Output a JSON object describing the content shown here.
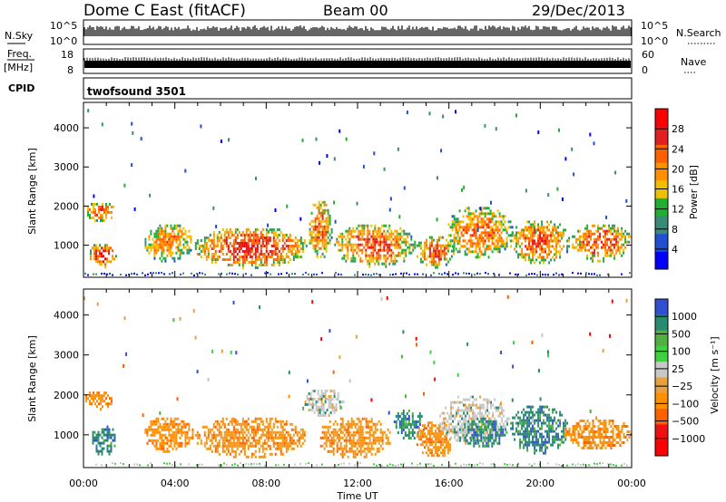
{
  "header": {
    "title": "Dome C East (fitACF)",
    "beam": "Beam 00",
    "date": "29/Dec/2013"
  },
  "panels": {
    "nsky_label": "N.Sky",
    "nsky_ticks": [
      "10^5",
      "10^0"
    ],
    "nsearch_label": "N.Search",
    "freq_label_1": "Freq.",
    "freq_label_2": "[MHz]",
    "freq_ticks": [
      "18",
      "8"
    ],
    "nave_ticks": [
      "60",
      "0"
    ],
    "nave_label": "Nave",
    "cpid_label": "CPID",
    "cpid_value": "twofsound 3501"
  },
  "colors": {
    "power_scale": [
      "#0000ff",
      "#2050d0",
      "#3a8a78",
      "#20b030",
      "#f0c000",
      "#ff9000",
      "#ff6000",
      "#e02020",
      "#ff0000"
    ],
    "velocity_scale": [
      "#3050d0",
      "#2a8a70",
      "#50b040",
      "#40d040",
      "#c8c8c8",
      "#e8a040",
      "#ff9000",
      "#ff6000",
      "#f01010",
      "#ff0000"
    ]
  },
  "chart_data": [
    {
      "type": "heatmap",
      "name": "Power",
      "xlabel": "Time UT",
      "ylabel": "Slant Range [km]",
      "x_ticks": [
        "00:00",
        "04:00",
        "08:00",
        "12:00",
        "16:00",
        "20:00",
        "00:00"
      ],
      "xlim_hours": [
        0,
        24
      ],
      "y_ticks": [
        1000,
        2000,
        3000,
        4000
      ],
      "ylim": [
        180,
        4650
      ],
      "colorbar_label": "Power [dB]",
      "colorbar_ticks": [
        4,
        8,
        12,
        16,
        20,
        24,
        28
      ],
      "colorbar_range": [
        0,
        32
      ],
      "echo_regions": [
        {
          "t": [
            0.0,
            1.4
          ],
          "r": [
            1650,
            2150
          ],
          "level": 0.55
        },
        {
          "t": [
            0.2,
            1.4
          ],
          "r": [
            450,
            1100
          ],
          "level": 0.7
        },
        {
          "t": [
            2.6,
            4.8
          ],
          "r": [
            600,
            1600
          ],
          "level": 0.5
        },
        {
          "t": [
            4.8,
            9.8
          ],
          "r": [
            450,
            1500
          ],
          "level": 0.7
        },
        {
          "t": [
            9.8,
            10.9
          ],
          "r": [
            700,
            2200
          ],
          "level": 0.55
        },
        {
          "t": [
            10.9,
            14.5
          ],
          "r": [
            450,
            1600
          ],
          "level": 0.6
        },
        {
          "t": [
            14.5,
            16.2
          ],
          "r": [
            450,
            1300
          ],
          "level": 0.6
        },
        {
          "t": [
            15.8,
            18.8
          ],
          "r": [
            700,
            2050
          ],
          "level": 0.55
        },
        {
          "t": [
            18.6,
            21.3
          ],
          "r": [
            550,
            1700
          ],
          "level": 0.6
        },
        {
          "t": [
            21.3,
            24.0
          ],
          "r": [
            600,
            1600
          ],
          "level": 0.6
        }
      ]
    },
    {
      "type": "heatmap",
      "name": "Velocity",
      "xlabel": "Time UT",
      "ylabel": "Slant Range [km]",
      "x_ticks": [
        "00:00",
        "04:00",
        "08:00",
        "12:00",
        "16:00",
        "20:00",
        "00:00"
      ],
      "xlim_hours": [
        0,
        24
      ],
      "y_ticks": [
        1000,
        2000,
        3000,
        4000
      ],
      "ylim": [
        180,
        4650
      ],
      "colorbar_label": "Velocity [m s⁻¹]",
      "colorbar_ticks": [
        "1000",
        "500",
        "100",
        "25",
        "−25",
        "−100",
        "−500",
        "−1000"
      ],
      "echo_regions": [
        {
          "t": [
            0.0,
            1.3
          ],
          "r": [
            1650,
            2150
          ],
          "palette": "neg"
        },
        {
          "t": [
            0.3,
            1.4
          ],
          "r": [
            500,
            1300
          ],
          "palette": "pos"
        },
        {
          "t": [
            2.6,
            4.8
          ],
          "r": [
            600,
            1500
          ],
          "palette": "neg"
        },
        {
          "t": [
            4.8,
            9.8
          ],
          "r": [
            450,
            1500
          ],
          "palette": "neg"
        },
        {
          "t": [
            9.6,
            11.4
          ],
          "r": [
            1500,
            2200
          ],
          "palette": "gray"
        },
        {
          "t": [
            10.2,
            13.5
          ],
          "r": [
            450,
            1500
          ],
          "palette": "neg"
        },
        {
          "t": [
            13.5,
            14.9
          ],
          "r": [
            900,
            1700
          ],
          "palette": "pos"
        },
        {
          "t": [
            14.5,
            16.2
          ],
          "r": [
            450,
            1400
          ],
          "palette": "neg"
        },
        {
          "t": [
            15.5,
            18.6
          ],
          "r": [
            800,
            2050
          ],
          "palette": "gray"
        },
        {
          "t": [
            16.5,
            18.5
          ],
          "r": [
            700,
            1500
          ],
          "palette": "pos"
        },
        {
          "t": [
            18.6,
            21.2
          ],
          "r": [
            550,
            1800
          ],
          "palette": "pos"
        },
        {
          "t": [
            21.0,
            24.0
          ],
          "r": [
            650,
            1450
          ],
          "palette": "neg"
        }
      ]
    }
  ]
}
